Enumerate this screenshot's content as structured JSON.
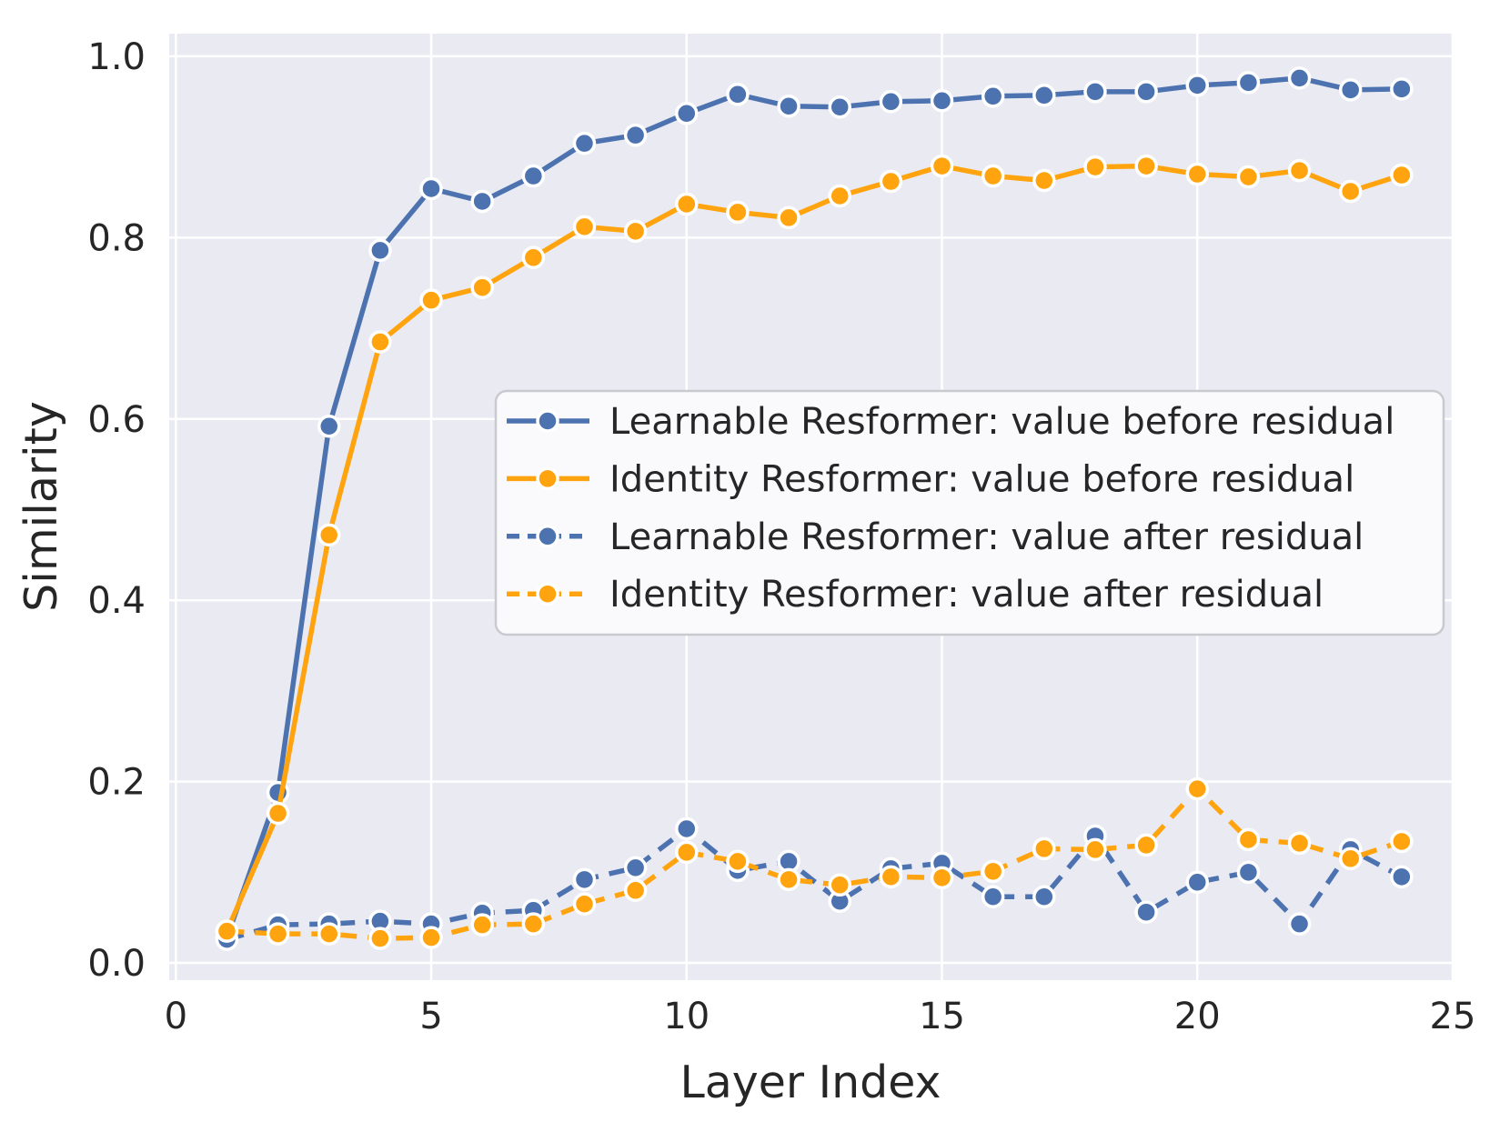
{
  "figure": {
    "background": "#ffffff"
  },
  "axis": {
    "xlabel": "Layer Index",
    "ylabel": "Similarity",
    "x_ticks": [
      0,
      5,
      10,
      15,
      20,
      25
    ],
    "y_ticks": [
      0.0,
      0.2,
      0.4,
      0.6,
      0.8,
      1.0
    ],
    "y_tick_labels": [
      "0.0",
      "0.2",
      "0.4",
      "0.6",
      "0.8",
      "1.0"
    ],
    "xlim": [
      -0.13,
      25.0
    ],
    "ylim": [
      -0.019,
      1.025
    ],
    "grid": true,
    "plot_bg": "#EAEAF2",
    "grid_color": "#FFFFFF",
    "text_color": "#262626"
  },
  "legend": {
    "bg": "#FAFAFC",
    "border": "#C9C9D0",
    "position": "center-right"
  },
  "chart_data": {
    "type": "line",
    "title": "",
    "xlabel": "Layer Index",
    "ylabel": "Similarity",
    "xlim": [
      -0.13,
      25.0
    ],
    "ylim": [
      -0.019,
      1.025
    ],
    "grid": true,
    "legend_position": "center-right",
    "x": [
      1,
      2,
      3,
      4,
      5,
      6,
      7,
      8,
      9,
      10,
      11,
      12,
      13,
      14,
      15,
      16,
      17,
      18,
      19,
      20,
      21,
      22,
      23,
      24
    ],
    "series": [
      {
        "name": "Learnable Resformer: value before residual",
        "color": "#4C72B0",
        "dashed": false,
        "values": [
          0.028,
          0.188,
          0.592,
          0.786,
          0.854,
          0.84,
          0.868,
          0.904,
          0.913,
          0.937,
          0.958,
          0.945,
          0.944,
          0.95,
          0.951,
          0.956,
          0.957,
          0.961,
          0.961,
          0.968,
          0.971,
          0.976,
          0.963,
          0.964
        ]
      },
      {
        "name": "Identity Resformer: value before residual",
        "color": "#FFA40E",
        "dashed": false,
        "values": [
          0.035,
          0.165,
          0.472,
          0.685,
          0.731,
          0.745,
          0.778,
          0.812,
          0.807,
          0.837,
          0.828,
          0.822,
          0.846,
          0.862,
          0.879,
          0.868,
          0.863,
          0.878,
          0.879,
          0.87,
          0.867,
          0.874,
          0.851,
          0.869
        ]
      },
      {
        "name": "Learnable Resformer: value after residual",
        "color": "#4C72B0",
        "dashed": true,
        "values": [
          0.026,
          0.042,
          0.043,
          0.046,
          0.043,
          0.055,
          0.058,
          0.092,
          0.105,
          0.148,
          0.102,
          0.112,
          0.068,
          0.104,
          0.11,
          0.073,
          0.073,
          0.14,
          0.056,
          0.089,
          0.1,
          0.043,
          0.125,
          0.095
        ]
      },
      {
        "name": "Identity Resformer: value after residual",
        "color": "#FFA40E",
        "dashed": true,
        "values": [
          0.035,
          0.032,
          0.032,
          0.027,
          0.028,
          0.042,
          0.043,
          0.065,
          0.08,
          0.122,
          0.112,
          0.092,
          0.086,
          0.095,
          0.094,
          0.101,
          0.126,
          0.125,
          0.13,
          0.192,
          0.136,
          0.132,
          0.115,
          0.134
        ]
      }
    ]
  }
}
